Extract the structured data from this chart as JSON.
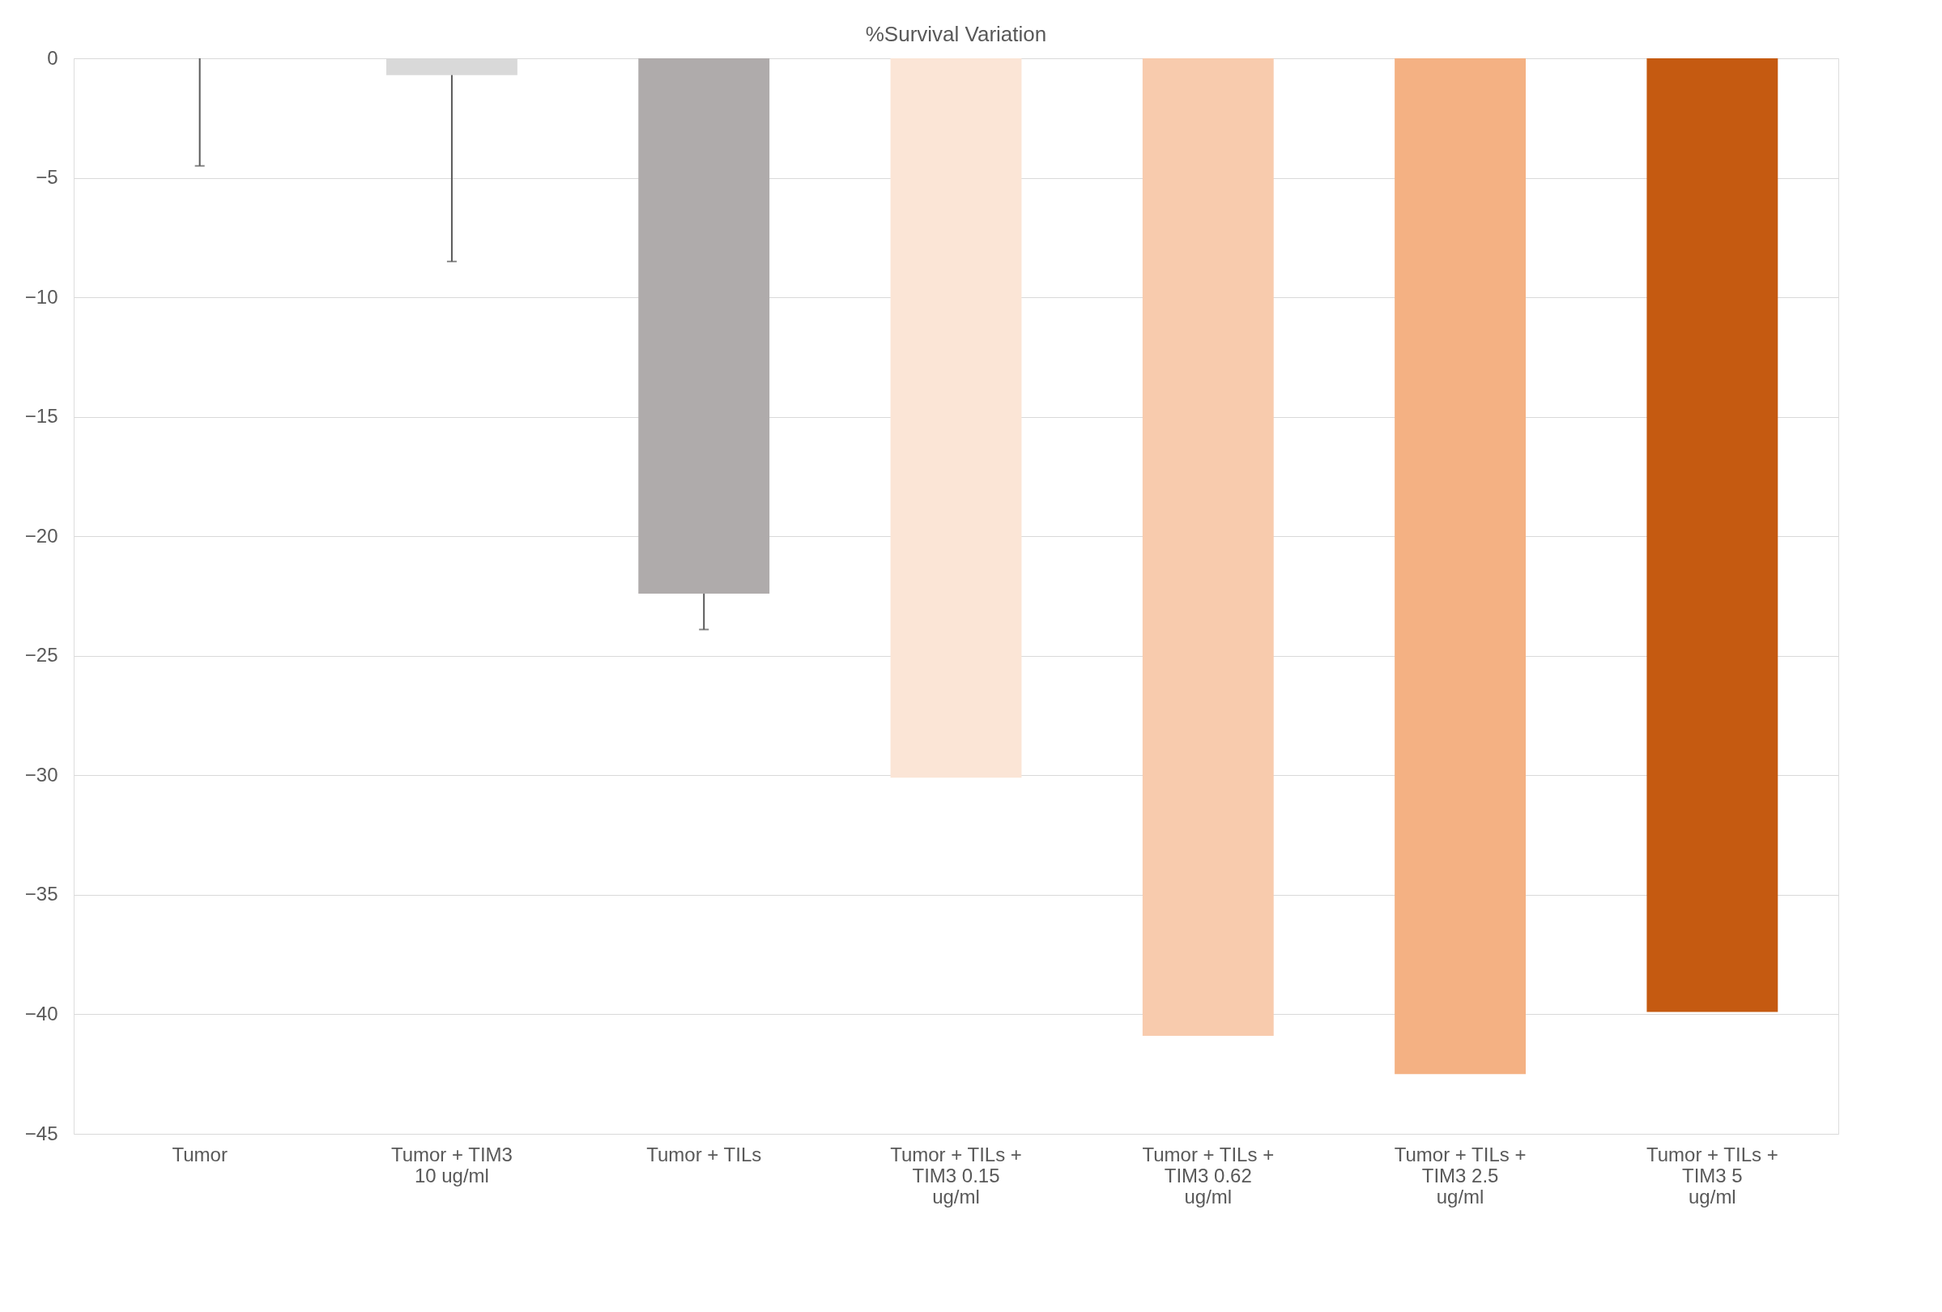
{
  "chart_data": {
    "type": "bar",
    "title": "%Survival Variation",
    "categories": [
      "Tumor",
      "Tumor + TIM3\n10 ug/ml",
      "Tumor + TILs",
      "Tumor + TILs +\nTIM3 0.15\nug/ml",
      "Tumor + TILs +\nTIM3 0.62\nug/ml",
      "Tumor + TILs +\nTIM3 2.5\nug/ml",
      "Tumor + TILs +\nTIM3 5\nug/ml"
    ],
    "values": [
      0,
      -0.7,
      -22.4,
      -30.1,
      -40.9,
      -42.5,
      -39.9
    ],
    "colors": [
      "#a5a5a5",
      "#d9d9d9",
      "#afabab",
      "#fbe5d6",
      "#f8cbad",
      "#f4b183",
      "#c55a11"
    ],
    "errors": [
      [
        -4.5,
        0
      ],
      [
        -8.5,
        -0.7
      ],
      [
        -23.9,
        -22.4
      ],
      null,
      null,
      null,
      null
    ],
    "ylim": [
      -45,
      0
    ],
    "yticks": [
      0,
      -5,
      -10,
      -15,
      -20,
      -25,
      -30,
      -35,
      -40,
      -45
    ],
    "grid": "y"
  }
}
